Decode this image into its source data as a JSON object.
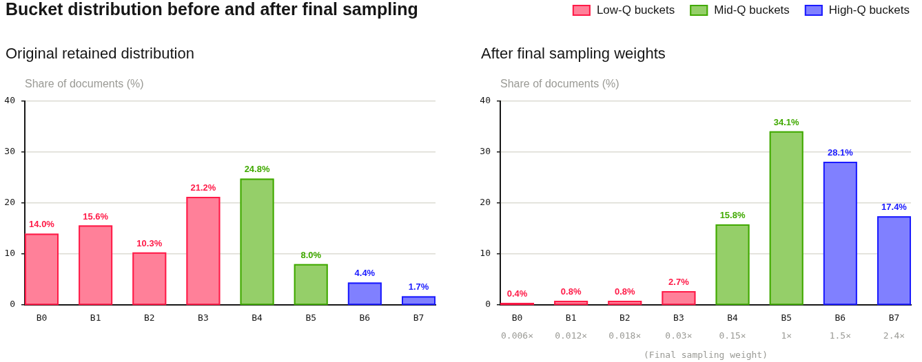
{
  "chart_data": [
    {
      "type": "bar",
      "title": "Bucket distribution before and after final sampling",
      "subtitle": "Original retained distribution",
      "ylabel": "Share of documents (%)",
      "categories": [
        "B0",
        "B1",
        "B2",
        "B3",
        "B4",
        "B5",
        "B6",
        "B7"
      ],
      "series": [
        {
          "color": "#ff8099",
          "values": [
            14.0,
            15.6,
            10.3,
            21.2,
            null,
            null,
            null,
            null
          ],
          "value_labels": [
            "14.0%",
            "15.6%",
            "10.3%",
            "21.2%",
            null,
            null,
            null,
            null
          ]
        },
        {
          "color": "#95cf69",
          "values": [
            null,
            null,
            null,
            null,
            24.8,
            8.0,
            null,
            null
          ],
          "value_labels": [
            null,
            null,
            null,
            null,
            "24.8%",
            "8.0%",
            null,
            null
          ]
        },
        {
          "color": "#8080ff",
          "values": [
            null,
            null,
            null,
            null,
            null,
            null,
            4.4,
            1.7
          ],
          "value_labels": [
            null,
            null,
            null,
            null,
            null,
            null,
            "4.4%",
            "1.7%"
          ]
        }
      ],
      "ylim": [
        0,
        40
      ],
      "yticks": [
        0,
        10,
        20,
        30,
        40
      ],
      "grid": "y"
    },
    {
      "type": "bar",
      "subtitle": "After final sampling weights",
      "ylabel": "Share of documents (%)",
      "xlabel": "(Final sampling weight)",
      "categories": [
        "B0",
        "B1",
        "B2",
        "B3",
        "B4",
        "B5",
        "B6",
        "B7"
      ],
      "series": [
        {
          "name": "Low-Q buckets",
          "color": "#ff8099",
          "values": [
            0.4,
            0.8,
            0.8,
            2.7,
            null,
            null,
            null,
            null
          ],
          "value_labels": [
            "0.4%",
            "0.8%",
            "0.8%",
            "2.7%",
            null,
            null,
            null,
            null
          ]
        },
        {
          "name": "Mid-Q buckets",
          "color": "#95cf69",
          "values": [
            null,
            null,
            null,
            null,
            15.8,
            34.1,
            null,
            null
          ],
          "value_labels": [
            null,
            null,
            null,
            null,
            "15.8%",
            "34.1%",
            null,
            null
          ]
        },
        {
          "name": "High-Q buckets",
          "color": "#8080ff",
          "values": [
            null,
            null,
            null,
            null,
            null,
            null,
            28.1,
            17.4
          ],
          "value_labels": [
            null,
            null,
            null,
            null,
            null,
            null,
            "28.1%",
            "17.4%"
          ]
        }
      ],
      "annotations": [
        "0.006×",
        "0.012×",
        "0.018×",
        "0.03×",
        "0.15×",
        "1×",
        "1.5×",
        "2.4×"
      ],
      "ylim": [
        0,
        40
      ],
      "yticks": [
        0,
        10,
        20,
        30,
        40
      ],
      "grid": "y",
      "legend": "top right"
    }
  ]
}
